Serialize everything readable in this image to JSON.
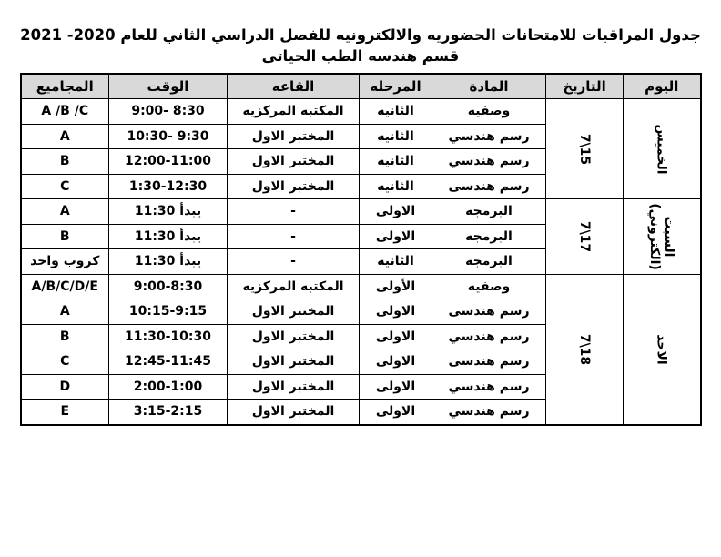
{
  "title": {
    "line1": "جدول المراقبات للامتحانات الحضوريه والالكترونيه للفصل الدراسي الثاني للعام  2020- 2021",
    "line2": "قسم هندسه الطب الحياتى"
  },
  "table": {
    "headers": {
      "day": "اليوم",
      "date": "التاريخ",
      "subject": "المادة",
      "stage": "المرحله",
      "hall": "القاعه",
      "time": "الوقت",
      "groups": "المجاميع"
    },
    "sections": [
      {
        "day_line1": "الخميس",
        "day_line2": "",
        "date": "7\\15",
        "rows": [
          {
            "subject": "وصفيه",
            "stage": "الثانيه",
            "hall": "المكتبه المركزيه",
            "time": "9:00- 8:30",
            "groups": "A /B /C"
          },
          {
            "subject": "رسم هندسي",
            "stage": "الثانيه",
            "hall": "المختبر الاول",
            "time": "10:30- 9:30",
            "groups": "A"
          },
          {
            "subject": "رسم هندسي",
            "stage": "الثانيه",
            "hall": "المختبر الاول",
            "time": "12:00-11:00",
            "groups": "B"
          },
          {
            "subject": "رسم هندسى",
            "stage": "الثانيه",
            "hall": "المختبر الاول",
            "time": "1:30-12:30",
            "groups": "C"
          }
        ]
      },
      {
        "day_line1": "السبت",
        "day_line2": "(الكتروني)",
        "date": "7\\17",
        "rows": [
          {
            "subject": "البرمجه",
            "stage": "الاولى",
            "hall": "-",
            "time": "11:30 يبدأ",
            "groups": "A"
          },
          {
            "subject": "البرمجه",
            "stage": "الاولى",
            "hall": "-",
            "time": "11:30 يبدأ",
            "groups": "B"
          },
          {
            "subject": "البرمجه",
            "stage": "الثانيه",
            "hall": "-",
            "time": "11:30 يبدأ",
            "groups": "كروب واحد"
          }
        ]
      },
      {
        "day_line1": "الاحد",
        "day_line2": "",
        "date": "7\\18",
        "rows": [
          {
            "subject": "وصفيه",
            "stage": "الأولى",
            "hall": "المكتبه المركزيه",
            "time": "9:00-8:30",
            "groups": "A/B/C/D/E"
          },
          {
            "subject": "رسم هندسى",
            "stage": "الاولى",
            "hall": "المختبر الاول",
            "time": "10:15-9:15",
            "groups": "A"
          },
          {
            "subject": "رسم هندسي",
            "stage": "الاولى",
            "hall": "المختبر الاول",
            "time": "11:30-10:30",
            "groups": "B"
          },
          {
            "subject": "رسم هندسى",
            "stage": "الاولى",
            "hall": "المختبر الاول",
            "time": "12:45-11:45",
            "groups": "C"
          },
          {
            "subject": "رسم هندسي",
            "stage": "الاولى",
            "hall": "المختبر الاول",
            "time": "2:00-1:00",
            "groups": "D"
          },
          {
            "subject": "رسم هندسي",
            "stage": "الاولى",
            "hall": "المختبر الاول",
            "time": "3:15-2:15",
            "groups": "E"
          }
        ]
      }
    ]
  },
  "colors": {
    "header_bg": "#d9d9d9",
    "border": "#000000",
    "text": "#000000",
    "page_bg": "#ffffff"
  }
}
